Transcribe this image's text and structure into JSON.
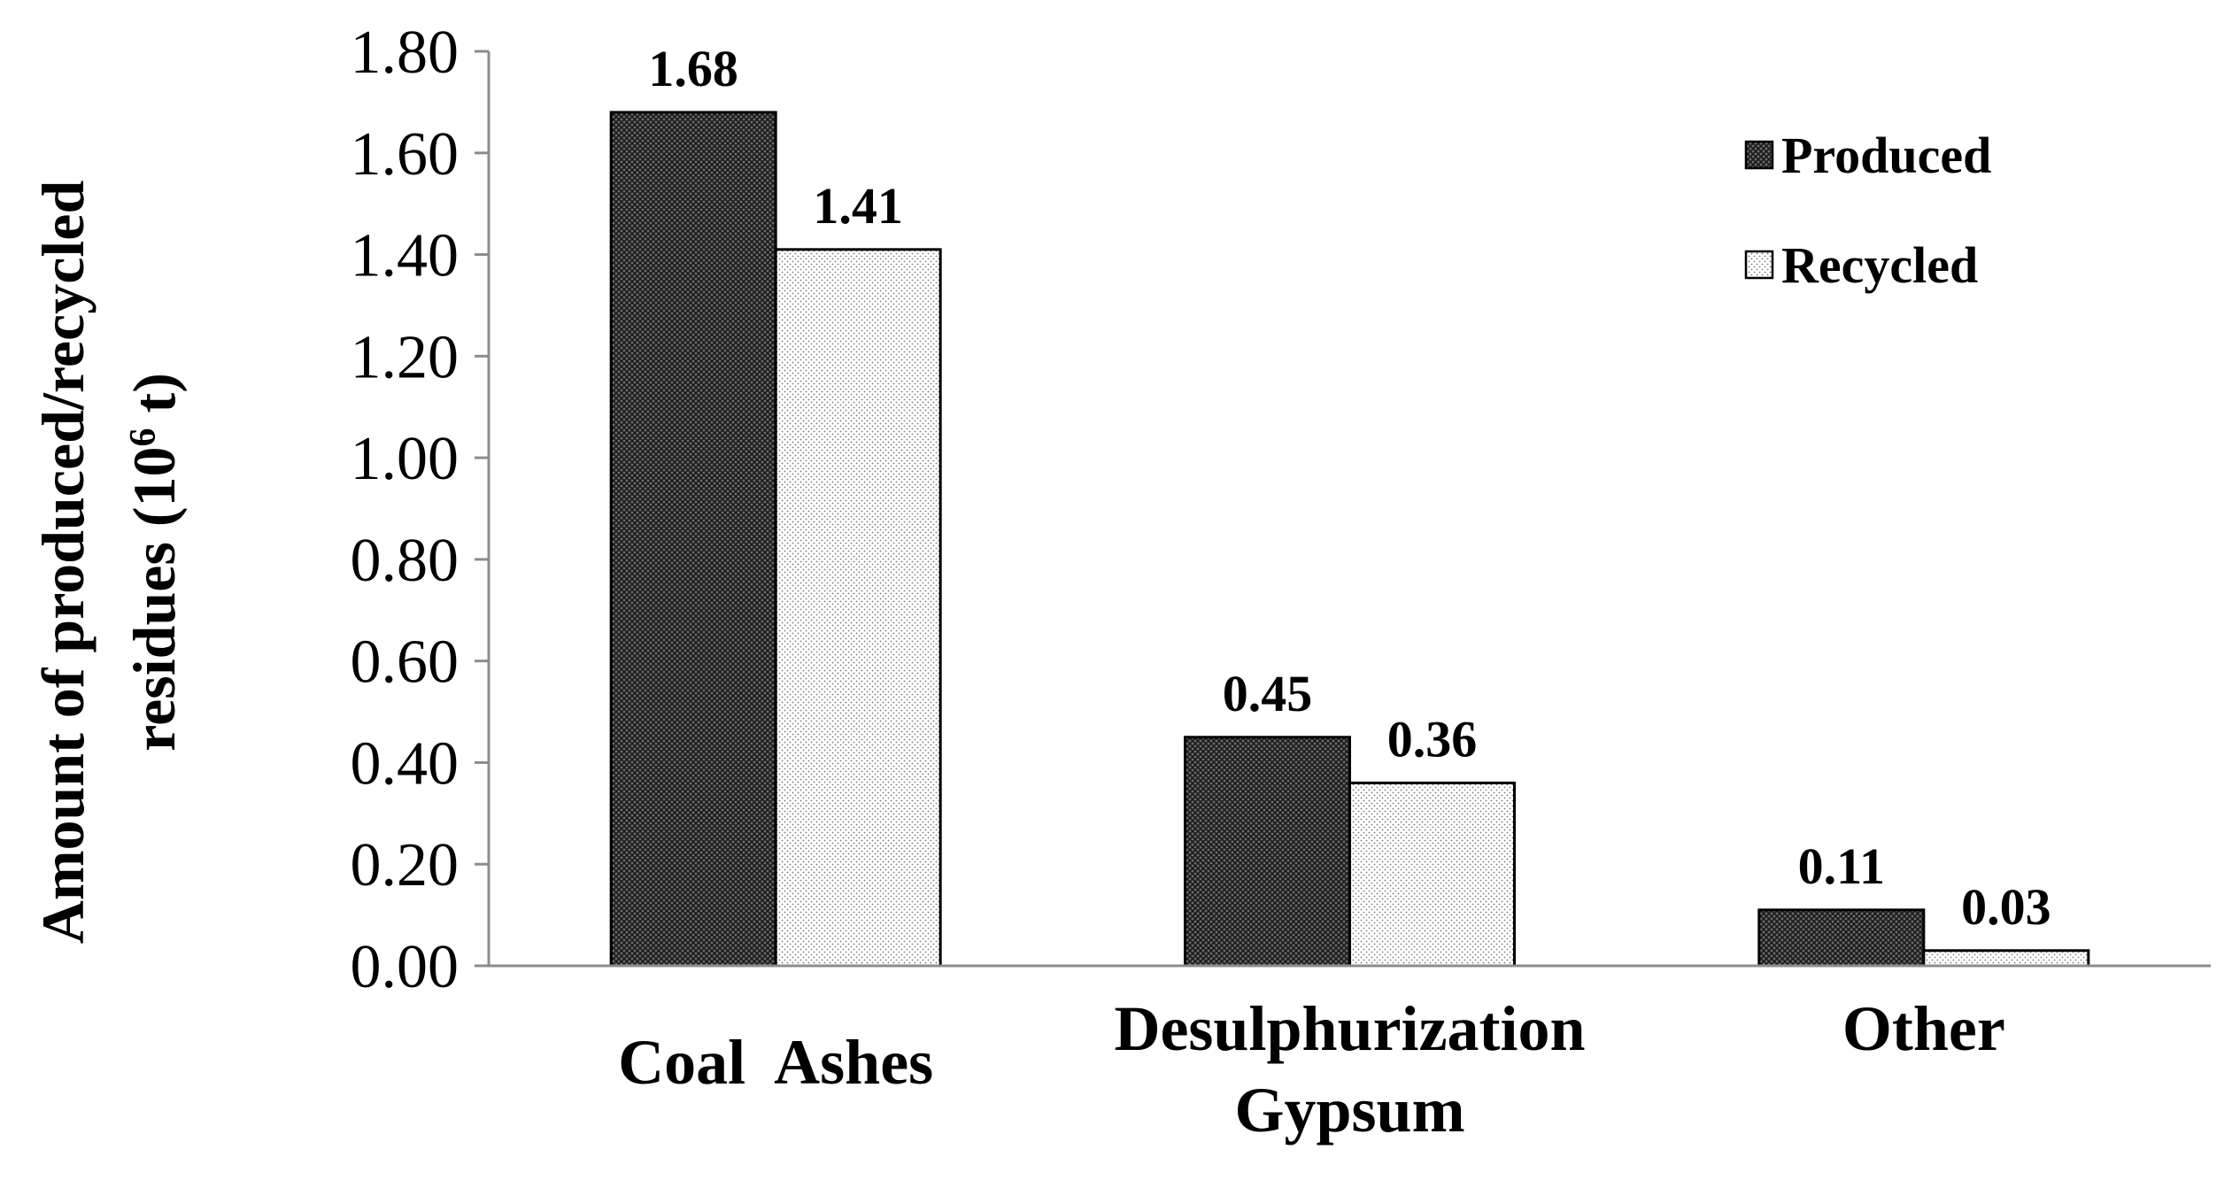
{
  "chart_data": {
    "type": "bar",
    "title": "",
    "ylabel": {
      "line1": "Amount of produced/recycled",
      "line2_prefix": "residues (10",
      "line2_sup": "6",
      "line2_suffix": " t)"
    },
    "xlabel": "",
    "categories": [
      [
        "Coal  Ashes"
      ],
      [
        "Desulphurization",
        "Gypsum"
      ],
      [
        "Other"
      ]
    ],
    "series": [
      {
        "name": "Produced",
        "values": [
          1.68,
          0.45,
          0.11
        ],
        "labels": [
          "1.68",
          "0.45",
          "0.11"
        ],
        "pattern": "dark-crosshatch"
      },
      {
        "name": "Recycled",
        "values": [
          1.41,
          0.36,
          0.03
        ],
        "labels": [
          "1.41",
          "0.36",
          "0.03"
        ],
        "pattern": "light-dots"
      }
    ],
    "ylim": [
      0,
      1.8
    ],
    "yticks": [
      "0.00",
      "0.20",
      "0.40",
      "0.60",
      "0.80",
      "1.00",
      "1.20",
      "1.40",
      "1.60",
      "1.80"
    ],
    "grid": false,
    "legend_position": "top-right",
    "colors": {
      "produced_fill": "#3a3a3a",
      "recycled_fill": "#ffffff",
      "outline": "#000000",
      "axis": "#8c8c8c"
    }
  }
}
